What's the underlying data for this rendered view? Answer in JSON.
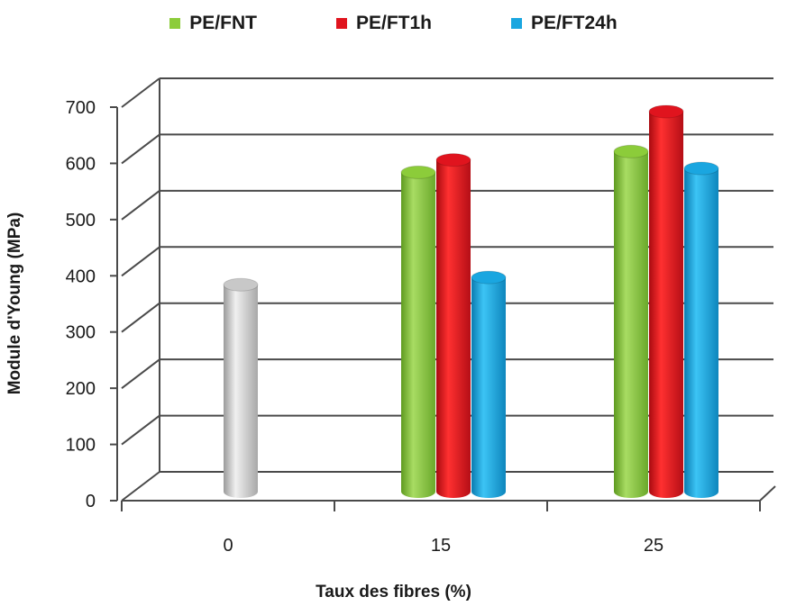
{
  "chart_data": {
    "type": "bar",
    "style": "3d-cylinder",
    "xlabel": "Taux des fibres (%)",
    "ylabel": "Module d'Young (MPa)",
    "ylim": [
      0,
      700
    ],
    "yticks": [
      0,
      100,
      200,
      300,
      400,
      500,
      600,
      700
    ],
    "categories": [
      "0",
      "15",
      "25"
    ],
    "grid": true,
    "legend_position": "top",
    "series": [
      {
        "name": "PE/FNT",
        "color": "#8ccc3a",
        "values": [
          null,
          560,
          597
        ]
      },
      {
        "name": "PE/FT1h",
        "color": "#e0141e",
        "values": [
          null,
          582,
          668
        ]
      },
      {
        "name": "PE/FT24h",
        "color": "#1aa6e0",
        "values": [
          null,
          373,
          567
        ]
      }
    ],
    "reference_bar": {
      "category": "0",
      "value": 360,
      "color": "#c8c8c8"
    }
  }
}
